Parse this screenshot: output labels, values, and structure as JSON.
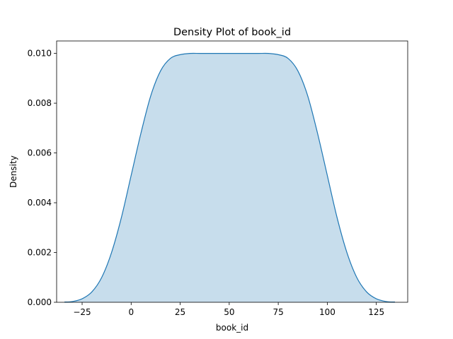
{
  "chart_data": {
    "type": "area",
    "title": "Density Plot of book_id",
    "xlabel": "book_id",
    "ylabel": "Density",
    "xlim": [
      -38,
      141
    ],
    "ylim": [
      0,
      0.0105
    ],
    "xticks": [
      -25,
      0,
      25,
      50,
      75,
      100,
      125
    ],
    "yticks": [
      0,
      0.002,
      0.004,
      0.006,
      0.008,
      0.01
    ],
    "xtick_labels": [
      "−25",
      "0",
      "25",
      "50",
      "75",
      "100",
      "125"
    ],
    "ytick_labels": [
      "0.000",
      "0.002",
      "0.004",
      "0.006",
      "0.008",
      "0.010"
    ],
    "grid": false,
    "legend": false,
    "line_color": "#1f77b4",
    "fill_color": "#1f77b4",
    "fill_opacity": 0.25,
    "series": [
      {
        "x": [
          -34,
          -30,
          -25,
          -20,
          -15,
          -10,
          -5,
          0,
          5,
          10,
          15,
          20,
          25,
          30,
          35,
          40,
          45,
          50,
          55,
          60,
          65,
          70,
          75,
          80,
          85,
          90,
          95,
          100,
          105,
          110,
          115,
          120,
          125,
          130,
          134.5
        ],
        "y": [
          1e-05,
          3e-05,
          0.00014,
          0.00042,
          0.001,
          0.002,
          0.0034,
          0.0051,
          0.0068,
          0.0083,
          0.0093,
          0.0098,
          0.00995,
          0.01,
          0.01,
          0.01,
          0.01,
          0.01,
          0.01,
          0.01,
          0.01,
          0.01,
          0.00995,
          0.0098,
          0.0093,
          0.0083,
          0.0068,
          0.0051,
          0.0034,
          0.002,
          0.001,
          0.00042,
          0.00014,
          3e-05,
          1e-05
        ]
      }
    ]
  }
}
